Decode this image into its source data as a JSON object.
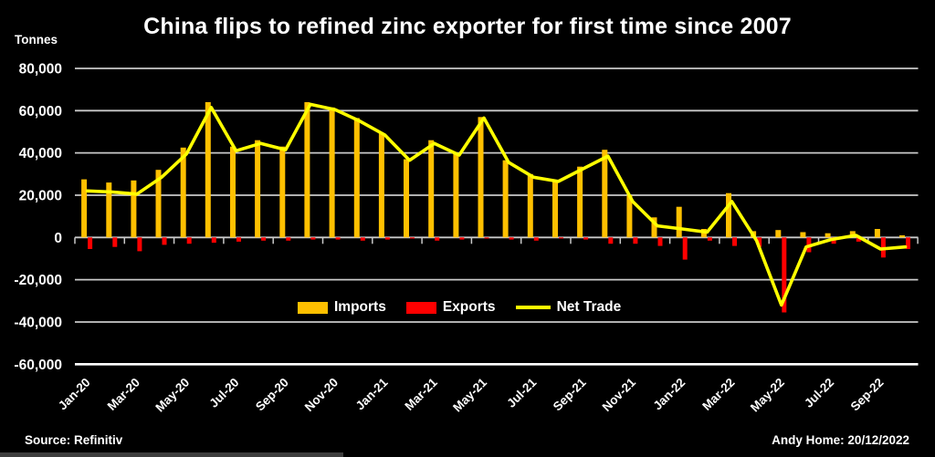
{
  "footer": {
    "source": "Source: Refinitiv",
    "attribution": "Andy Home: 20/12/2022"
  },
  "chart_data": {
    "type": "combo_bar_line",
    "title": "China flips to refined zinc exporter for first time since 2007",
    "y_unit": "Tonnes",
    "background": "#000000",
    "grid": true,
    "gridline_color": "#C9C9C9",
    "axis_line_color": "#FFFFFF",
    "text_color": "#FFFFFF",
    "ylim": [
      -60000,
      80000
    ],
    "ytick_step": 20000,
    "ytick_labels": [
      "80,000",
      "60,000",
      "40,000",
      "20,000",
      "0",
      "-20,000",
      "-40,000",
      "-60,000"
    ],
    "legend_position": "inside-bottom-center",
    "categories": [
      "Jan-20",
      "Feb-20",
      "Mar-20",
      "Apr-20",
      "May-20",
      "Jun-20",
      "Jul-20",
      "Aug-20",
      "Sep-20",
      "Oct-20",
      "Nov-20",
      "Dec-20",
      "Jan-21",
      "Feb-21",
      "Mar-21",
      "Apr-21",
      "May-21",
      "Jun-21",
      "Jul-21",
      "Aug-21",
      "Sep-21",
      "Oct-21",
      "Nov-21",
      "Dec-21",
      "Jan-22",
      "Feb-22",
      "Mar-22",
      "Apr-22",
      "May-22",
      "Jun-22",
      "Jul-22",
      "Aug-22",
      "Sep-22",
      "Oct-22"
    ],
    "x_tick_labels": [
      "Jan-20",
      "Mar-20",
      "May-20",
      "Jul-20",
      "Sep-20",
      "Nov-20",
      "Jan-21",
      "Mar-21",
      "May-21",
      "Jul-21",
      "Sep-21",
      "Nov-21",
      "Jan-22",
      "Mar-22",
      "May-22",
      "Jul-22",
      "Sep-22"
    ],
    "series": [
      {
        "name": "Imports",
        "type": "bar",
        "color": "#FFC000",
        "values": [
          27500,
          26000,
          27000,
          32000,
          42500,
          64000,
          43000,
          46000,
          43000,
          64000,
          61500,
          56500,
          49500,
          37000,
          46000,
          40000,
          57000,
          36500,
          30000,
          27000,
          33500,
          41500,
          20000,
          9500,
          14500,
          4000,
          21000,
          3000,
          3500,
          2500,
          2000,
          3000,
          4000,
          1000
        ]
      },
      {
        "name": "Exports",
        "type": "bar",
        "color": "#FF0000",
        "values": [
          -5500,
          -4500,
          -6500,
          -3500,
          -3000,
          -2500,
          -2000,
          -1500,
          -1500,
          -1000,
          -1000,
          -1500,
          -1000,
          -500,
          -1500,
          -1000,
          -500,
          -1000,
          -1500,
          -500,
          -1000,
          -3000,
          -3000,
          -4000,
          -10500,
          -1500,
          -4000,
          -4500,
          -35500,
          -7000,
          -3000,
          -2000,
          -9500,
          -5500
        ]
      },
      {
        "name": "Net Trade",
        "type": "line",
        "color": "#FFFF00",
        "values": [
          22000,
          21500,
          20500,
          28500,
          39500,
          61500,
          41000,
          44500,
          41500,
          63000,
          60500,
          55000,
          48500,
          36500,
          44500,
          39000,
          56500,
          35500,
          28500,
          26500,
          32500,
          38500,
          17000,
          5500,
          4000,
          2500,
          17000,
          -1500,
          -32000,
          -4500,
          -1000,
          1000,
          -5500,
          -4500
        ]
      }
    ]
  }
}
